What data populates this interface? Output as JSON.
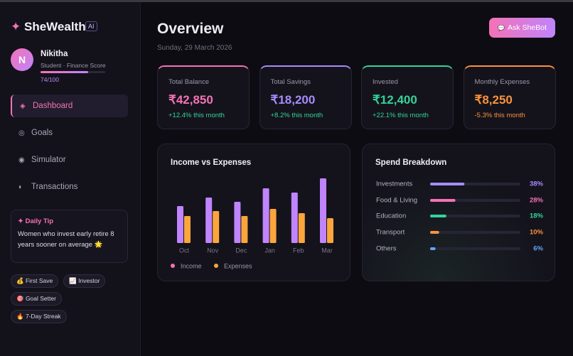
{
  "sidebar": {
    "logo": "SheWealth",
    "badge": "AI",
    "user": {
      "initial": "N",
      "name": "Nikitha",
      "subtitle": "Student · Finance Score",
      "score": 74,
      "score_max": 100,
      "score_label": "74/100"
    },
    "nav": [
      "Dashboard",
      "Goals",
      "Simulator",
      "Transactions"
    ],
    "tip": {
      "title": "Daily Tip",
      "text": "Women who invest early retire 8 years sooner on average 🌟"
    },
    "achievements": [
      "💰 First Save",
      "📈 Investor",
      "🎯 Goal Setter",
      "🔥 7-Day Streak"
    ]
  },
  "header": {
    "title": "Overview",
    "date": "Sunday, 29 March 2026",
    "button": "Ask SheBot"
  },
  "cards": [
    {
      "label": "Total Balance",
      "value": "₹42,850",
      "change": "+12.4% this month",
      "color": "#f472b6",
      "change_color": "#34d399"
    },
    {
      "label": "Total Savings",
      "value": "₹18,200",
      "change": "+8.2% this month",
      "color": "#a78bfa",
      "change_color": "#34d399"
    },
    {
      "label": "Invested",
      "value": "₹12,400",
      "change": "+22.1% this month",
      "color": "#34d399",
      "change_color": "#34d399"
    },
    {
      "label": "Monthly Expenses",
      "value": "₹8,250",
      "change": "-5.3% this month",
      "color": "#fb923c",
      "change_color": "#fb923c"
    }
  ],
  "chart_data": [
    {
      "type": "bar",
      "title": "Income vs Expenses",
      "categories": [
        "Oct",
        "Nov",
        "Dec",
        "Jan",
        "Feb",
        "Mar"
      ],
      "series": [
        {
          "name": "Income",
          "color": "#c084fc",
          "values": [
            52,
            64,
            58,
            77,
            71,
            91
          ]
        },
        {
          "name": "Expenses",
          "color": "#fba53c",
          "values": [
            38,
            45,
            38,
            48,
            42,
            35
          ]
        }
      ]
    },
    {
      "type": "progress",
      "title": "Spend Breakdown",
      "categories": [
        "Investments",
        "Food & Living",
        "Education",
        "Transport",
        "Others"
      ],
      "values": [
        38,
        28,
        18,
        10,
        6
      ],
      "value_labels": [
        "38%",
        "28%",
        "18%",
        "10%",
        "6%"
      ],
      "xlim": [
        0,
        100
      ],
      "colors": [
        "#a78bfa",
        "#f472b6",
        "#34d399",
        "#fb923c",
        "#60a5fa"
      ]
    }
  ]
}
